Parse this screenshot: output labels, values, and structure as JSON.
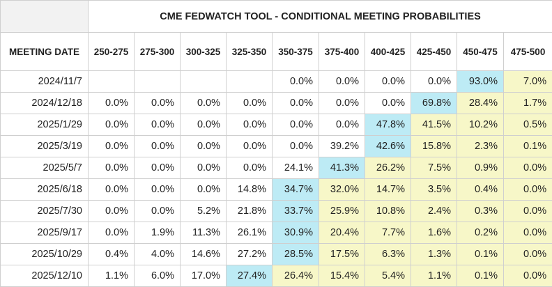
{
  "chart_data": {
    "type": "table",
    "title": "CME FEDWATCH TOOL - CONDITIONAL MEETING PROBABILITIES",
    "row_header": "MEETING DATE",
    "columns": [
      "250-275",
      "275-300",
      "300-325",
      "325-350",
      "350-375",
      "375-400",
      "400-425",
      "425-450",
      "450-475",
      "475-500"
    ],
    "rows": [
      {
        "date": "2024/11/7",
        "values": [
          "",
          "",
          "",
          "",
          "0.0%",
          "0.0%",
          "0.0%",
          "0.0%",
          "93.0%",
          "7.0%"
        ]
      },
      {
        "date": "2024/12/18",
        "values": [
          "0.0%",
          "0.0%",
          "0.0%",
          "0.0%",
          "0.0%",
          "0.0%",
          "0.0%",
          "69.8%",
          "28.4%",
          "1.7%"
        ]
      },
      {
        "date": "2025/1/29",
        "values": [
          "0.0%",
          "0.0%",
          "0.0%",
          "0.0%",
          "0.0%",
          "0.0%",
          "47.8%",
          "41.5%",
          "10.2%",
          "0.5%"
        ]
      },
      {
        "date": "2025/3/19",
        "values": [
          "0.0%",
          "0.0%",
          "0.0%",
          "0.0%",
          "0.0%",
          "39.2%",
          "42.6%",
          "15.8%",
          "2.3%",
          "0.1%"
        ]
      },
      {
        "date": "2025/5/7",
        "values": [
          "0.0%",
          "0.0%",
          "0.0%",
          "0.0%",
          "24.1%",
          "41.3%",
          "26.2%",
          "7.5%",
          "0.9%",
          "0.0%"
        ]
      },
      {
        "date": "2025/6/18",
        "values": [
          "0.0%",
          "0.0%",
          "0.0%",
          "14.8%",
          "34.7%",
          "32.0%",
          "14.7%",
          "3.5%",
          "0.4%",
          "0.0%"
        ]
      },
      {
        "date": "2025/7/30",
        "values": [
          "0.0%",
          "0.0%",
          "5.2%",
          "21.8%",
          "33.7%",
          "25.9%",
          "10.8%",
          "2.4%",
          "0.3%",
          "0.0%"
        ]
      },
      {
        "date": "2025/9/17",
        "values": [
          "0.0%",
          "1.9%",
          "11.3%",
          "26.1%",
          "30.9%",
          "20.4%",
          "7.7%",
          "1.6%",
          "0.2%",
          "0.0%"
        ]
      },
      {
        "date": "2025/10/29",
        "values": [
          "0.4%",
          "4.0%",
          "14.6%",
          "27.2%",
          "28.5%",
          "17.5%",
          "6.3%",
          "1.3%",
          "0.1%",
          "0.0%"
        ]
      },
      {
        "date": "2025/12/10",
        "values": [
          "1.1%",
          "6.0%",
          "17.0%",
          "27.4%",
          "26.4%",
          "15.4%",
          "5.4%",
          "1.1%",
          "0.1%",
          "0.0%"
        ]
      }
    ],
    "cell_colors": [
      [
        "white",
        "white",
        "white",
        "white",
        "white",
        "white",
        "white",
        "white",
        "blue",
        "yellow"
      ],
      [
        "white",
        "white",
        "white",
        "white",
        "white",
        "white",
        "white",
        "blue",
        "yellow",
        "yellow"
      ],
      [
        "white",
        "white",
        "white",
        "white",
        "white",
        "white",
        "blue",
        "yellow",
        "yellow",
        "yellow"
      ],
      [
        "white",
        "white",
        "white",
        "white",
        "white",
        "white",
        "blue",
        "yellow",
        "yellow",
        "yellow"
      ],
      [
        "white",
        "white",
        "white",
        "white",
        "white",
        "blue",
        "yellow",
        "yellow",
        "yellow",
        "yellow"
      ],
      [
        "white",
        "white",
        "white",
        "white",
        "blue",
        "yellow",
        "yellow",
        "yellow",
        "yellow",
        "yellow"
      ],
      [
        "white",
        "white",
        "white",
        "white",
        "blue",
        "yellow",
        "yellow",
        "yellow",
        "yellow",
        "yellow"
      ],
      [
        "white",
        "white",
        "white",
        "white",
        "blue",
        "yellow",
        "yellow",
        "yellow",
        "yellow",
        "yellow"
      ],
      [
        "white",
        "white",
        "white",
        "white",
        "blue",
        "yellow",
        "yellow",
        "yellow",
        "yellow",
        "yellow"
      ],
      [
        "white",
        "white",
        "white",
        "blue",
        "yellow",
        "yellow",
        "yellow",
        "yellow",
        "yellow",
        "yellow"
      ]
    ],
    "colors": {
      "yellow": "#f7f7c8",
      "blue": "#bdebf5",
      "white": "#ffffff",
      "header": "#f2f2f2"
    }
  }
}
